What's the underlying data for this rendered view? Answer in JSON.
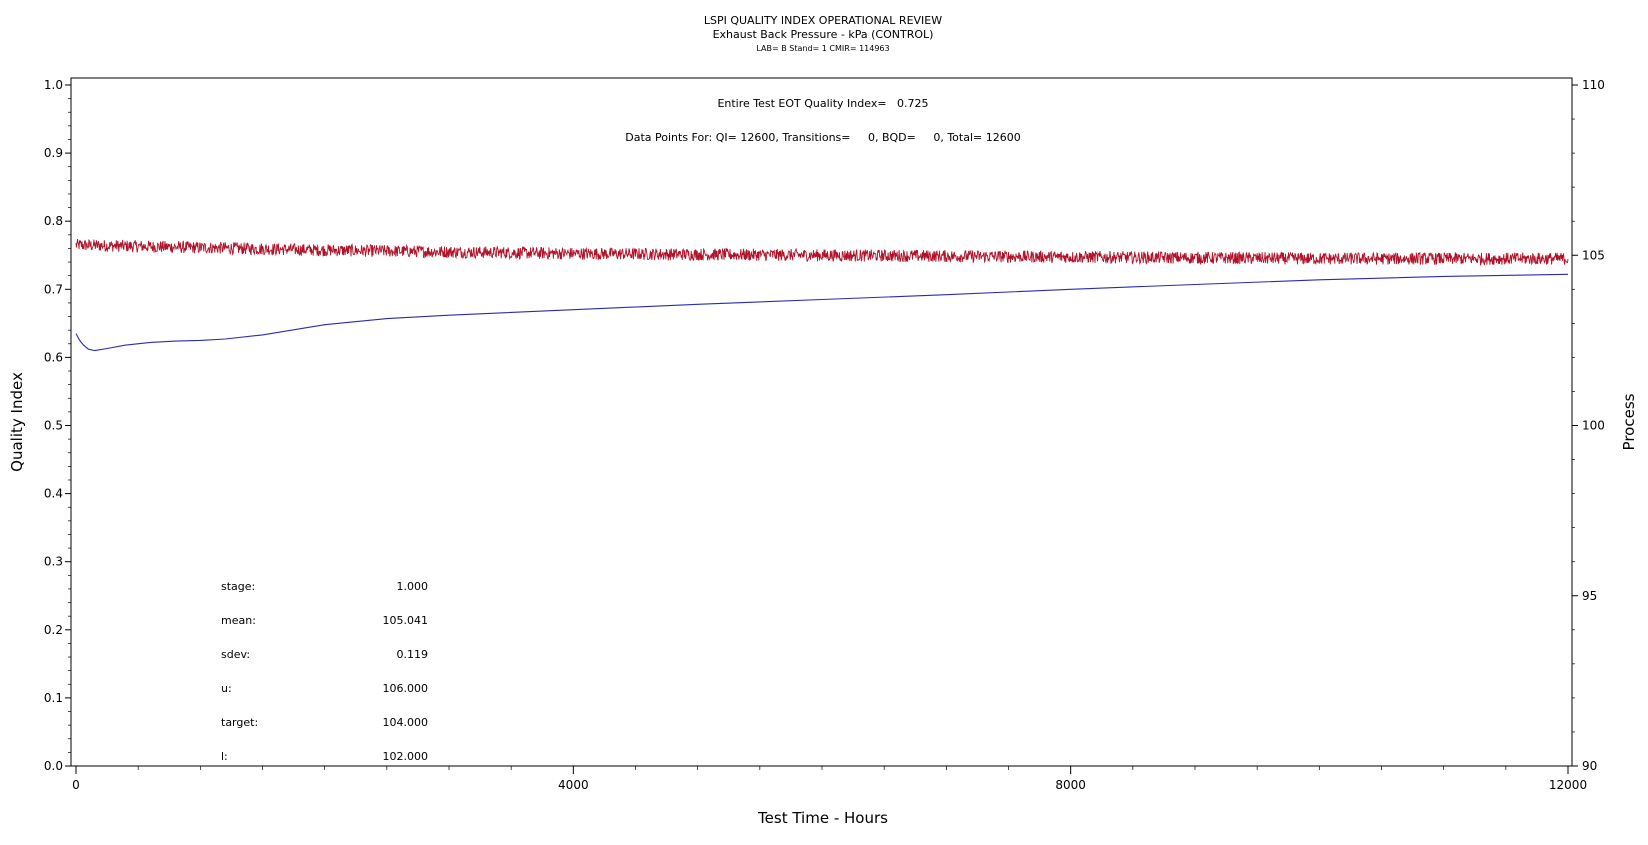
{
  "chart_data": {
    "type": "line",
    "title": "LSPI QUALITY INDEX OPERATIONAL REVIEW",
    "subtitle": "Exhaust Back Pressure - kPa (CONTROL)",
    "subtitle2": "LAB= B Stand= 1 CMIR= 114963",
    "xlabel": "Test Time - Hours",
    "ylabel": "Quality Index",
    "y2label": "Process",
    "xlim": [
      0,
      12000
    ],
    "ylim": [
      0.0,
      1.0
    ],
    "y2lim": [
      90,
      110
    ],
    "x_ticks": [
      0,
      4000,
      8000,
      12000
    ],
    "x_tick_labels": [
      "0",
      "4000",
      "8000",
      "12000"
    ],
    "y_ticks": [
      0.0,
      0.1,
      0.2,
      0.3,
      0.4,
      0.5,
      0.6,
      0.7,
      0.8,
      0.9,
      1.0
    ],
    "y_tick_labels": [
      "0.0",
      "0.1",
      "0.2",
      "0.3",
      "0.4",
      "0.5",
      "0.6",
      "0.7",
      "0.8",
      "0.9",
      "1.0"
    ],
    "y2_ticks": [
      90,
      95,
      100,
      105,
      110
    ],
    "y2_tick_labels": [
      "90",
      "95",
      "100",
      "105",
      "110"
    ],
    "grid": false,
    "annotations": {
      "quality_index": "Entire Test EOT Quality Index=   0.725",
      "data_points": "Data Points For: QI= 12600, Transitions=     0, BQD=     0, Total= 12600"
    },
    "stats": [
      {
        "label": "stage:",
        "value": "1.000"
      },
      {
        "label": "mean:",
        "value": "105.041"
      },
      {
        "label": "sdev:",
        "value": "0.119"
      },
      {
        "label": "u:",
        "value": "106.000"
      },
      {
        "label": "target:",
        "value": "104.000"
      },
      {
        "label": "l:",
        "value": "102.000"
      }
    ],
    "series": [
      {
        "axis": "left",
        "color": "#2b2bb0",
        "x": [
          0,
          30,
          60,
          100,
          150,
          250,
          400,
          600,
          800,
          1000,
          1200,
          1500,
          2000,
          2500,
          3000,
          4000,
          5000,
          6000,
          7000,
          8000,
          9000,
          10000,
          11000,
          12000
        ],
        "values": [
          0.635,
          0.625,
          0.618,
          0.612,
          0.61,
          0.613,
          0.618,
          0.622,
          0.624,
          0.625,
          0.627,
          0.633,
          0.648,
          0.657,
          0.662,
          0.67,
          0.678,
          0.685,
          0.692,
          0.7,
          0.707,
          0.714,
          0.719,
          0.722
        ]
      },
      {
        "axis": "right",
        "color": "#b0122a",
        "x": [
          0,
          2000,
          4000,
          6000,
          8000,
          10000,
          12000
        ],
        "values": [
          105.3,
          105.15,
          105.05,
          105.0,
          104.95,
          104.9,
          104.9
        ],
        "noise": 0.18
      }
    ]
  }
}
